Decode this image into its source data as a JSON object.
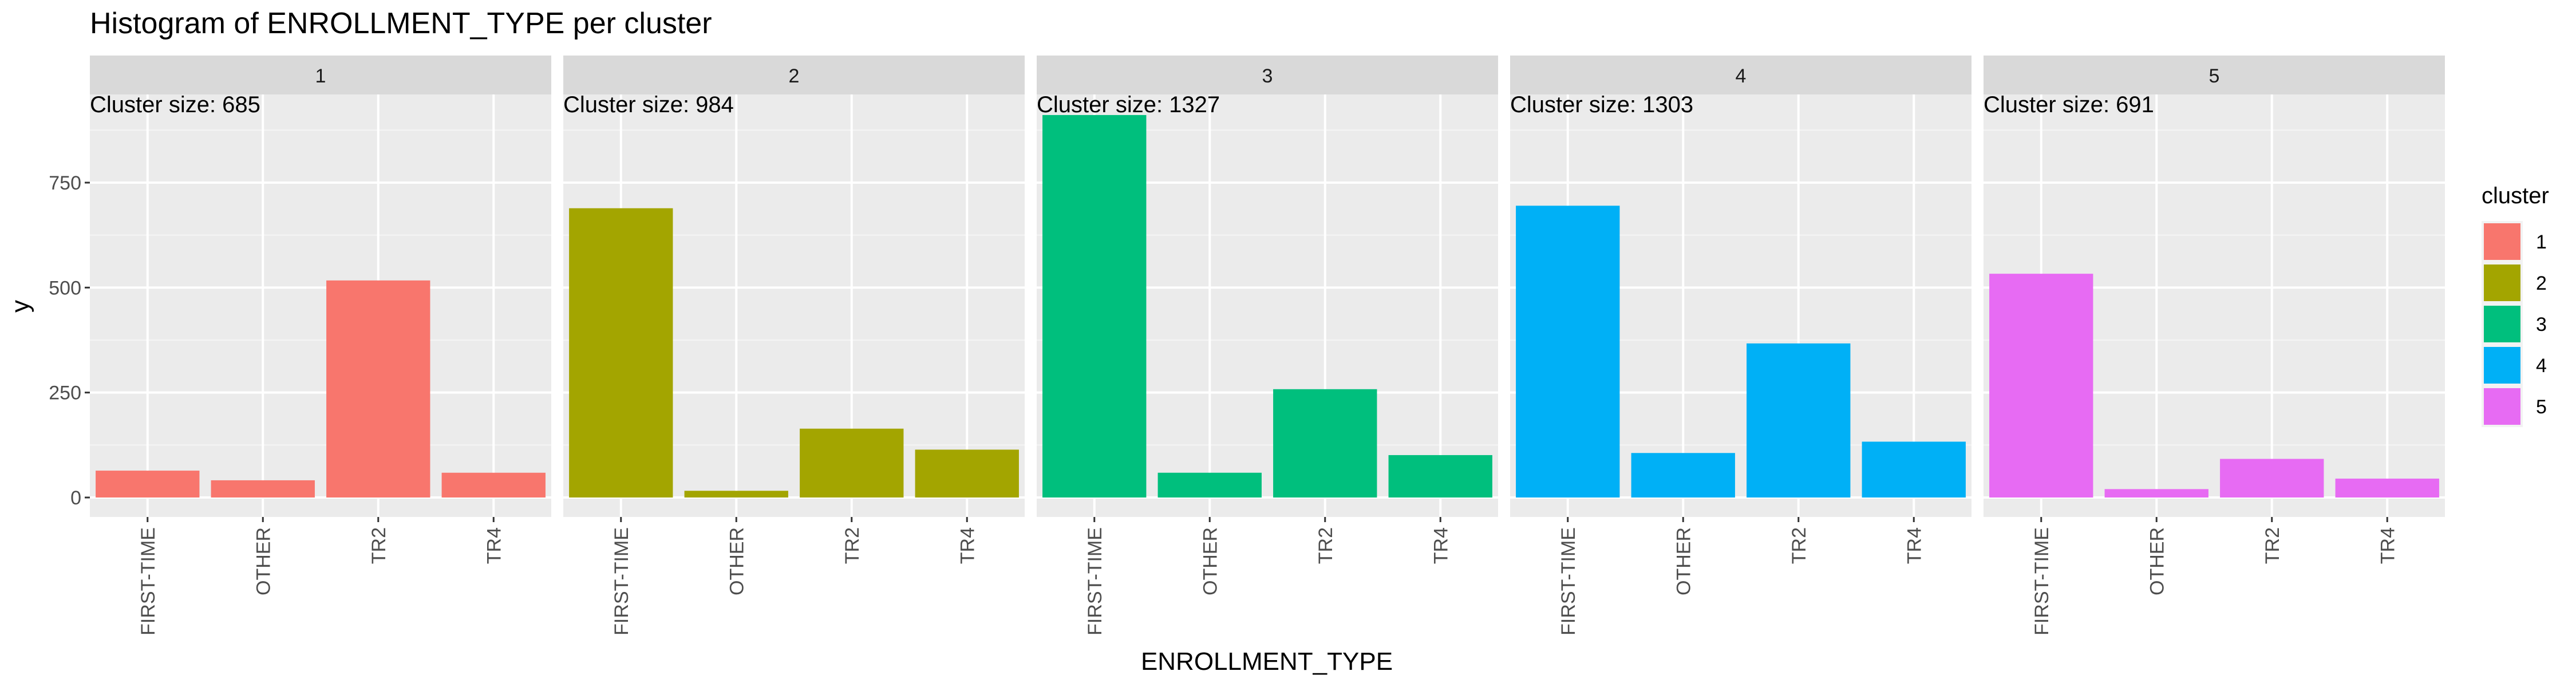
{
  "chart_data": {
    "type": "bar",
    "title": "Histogram of ENROLLMENT_TYPE per cluster",
    "xlabel": "ENROLLMENT_TYPE",
    "ylabel": "y",
    "categories": [
      "FIRST-TIME",
      "OTHER",
      "TR2",
      "TR4"
    ],
    "ylim": [
      0,
      960
    ],
    "yticks": [
      0,
      250,
      500,
      750
    ],
    "grid": true,
    "legend": {
      "title": "cluster",
      "placement": "right",
      "entries": [
        {
          "label": "1",
          "color": "#F8766D"
        },
        {
          "label": "2",
          "color": "#A3A500"
        },
        {
          "label": "3",
          "color": "#00BF7D"
        },
        {
          "label": "4",
          "color": "#00B0F6"
        },
        {
          "label": "5",
          "color": "#E76BF3"
        }
      ]
    },
    "facets": [
      {
        "label": "1",
        "annotation": "Cluster size: 685",
        "color": "#F8766D",
        "values": [
          64,
          41,
          517,
          59
        ]
      },
      {
        "label": "2",
        "annotation": "Cluster size: 984",
        "color": "#A3A500",
        "values": [
          689,
          16,
          164,
          114
        ]
      },
      {
        "label": "3",
        "annotation": "Cluster size: 1327",
        "color": "#00BF7D",
        "values": [
          911,
          59,
          258,
          101
        ]
      },
      {
        "label": "4",
        "annotation": "Cluster size: 1303",
        "color": "#00B0F6",
        "values": [
          695,
          106,
          367,
          133
        ]
      },
      {
        "label": "5",
        "annotation": "Cluster size: 691",
        "color": "#E76BF3",
        "values": [
          533,
          20,
          92,
          45
        ]
      }
    ]
  }
}
